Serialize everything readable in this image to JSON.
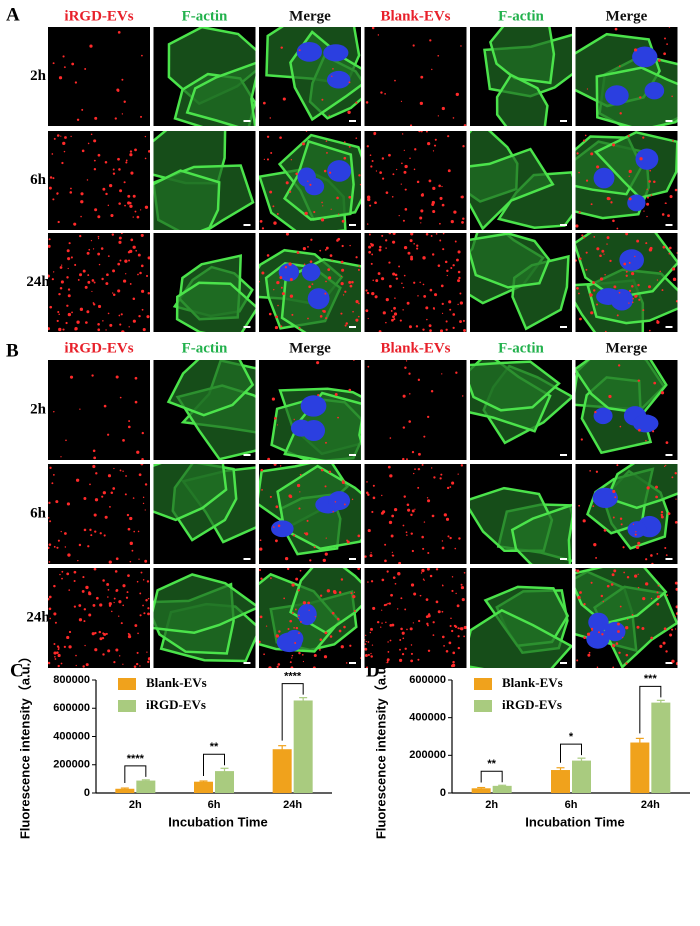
{
  "panel_a": {
    "label": "A",
    "columns": [
      "iRGD-EVs",
      "F-actin",
      "Merge",
      "Blank-EVs",
      "F-actin",
      "Merge"
    ],
    "rows": [
      "2h",
      "6h",
      "24h"
    ]
  },
  "panel_b": {
    "label": "B",
    "columns": [
      "iRGD-EVs",
      "F-actin",
      "Merge",
      "Blank-EVs",
      "F-actin",
      "Merge"
    ],
    "rows": [
      "2h",
      "6h",
      "24h"
    ]
  },
  "chart_data": [
    {
      "type": "bar",
      "panel_label": "C",
      "y_label": "Fluorescence intensity（a.u.）",
      "x_label": "Incubation Time",
      "categories": [
        "2h",
        "6h",
        "24h"
      ],
      "series": [
        {
          "name": "Blank-EVs",
          "color": "#f0a21c",
          "values": [
            30000,
            80000,
            310000
          ],
          "errors": [
            5000,
            5000,
            25000
          ]
        },
        {
          "name": "iRGD-EVs",
          "color": "#a9cb7f",
          "values": [
            88000,
            155000,
            655000
          ],
          "errors": [
            5000,
            20000,
            20000
          ]
        }
      ],
      "annotations": [
        "****",
        "**",
        "****"
      ],
      "ylim": [
        0,
        800000
      ],
      "yticks": [
        0,
        200000,
        400000,
        600000,
        800000
      ]
    },
    {
      "type": "bar",
      "panel_label": "D",
      "y_label": "Fluorescence intensity（a.u.）",
      "x_label": "Incubation Time",
      "categories": [
        "2h",
        "6h",
        "24h"
      ],
      "series": [
        {
          "name": "Blank-EVs",
          "color": "#f0a21c",
          "values": [
            25000,
            122000,
            268000
          ],
          "errors": [
            4000,
            12000,
            22000
          ]
        },
        {
          "name": "iRGD-EVs",
          "color": "#a9cb7f",
          "values": [
            38000,
            172000,
            480000
          ],
          "errors": [
            3000,
            13000,
            12000
          ]
        }
      ],
      "annotations": [
        "**",
        "*",
        "***"
      ],
      "ylim": [
        0,
        600000
      ],
      "yticks": [
        0,
        200000,
        400000,
        600000
      ]
    }
  ]
}
